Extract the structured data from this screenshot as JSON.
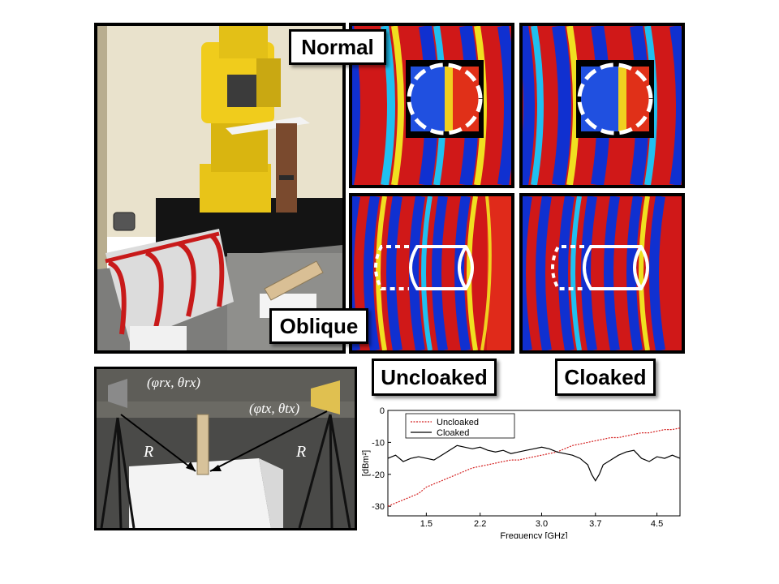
{
  "labels": {
    "normal": "Normal",
    "oblique": "Oblique",
    "uncloaked": "Uncloaked",
    "cloaked": "Cloaked"
  },
  "photo_labels": {
    "rx": "(φrx, θrx)",
    "tx": "(φtx, θtx)",
    "r_left": "R",
    "r_right": "R"
  },
  "colors": {
    "uncloaked_series": "#d42020",
    "cloaked_series": "#000000",
    "label_border": "#000000"
  },
  "chart_data": {
    "type": "line",
    "xlabel": "Frequency [GHz]",
    "ylabel": "[dBm²]",
    "xlim": [
      1.0,
      4.8
    ],
    "ylim": [
      -33,
      0
    ],
    "x_ticks": [
      1.5,
      2.2,
      3.0,
      3.7,
      4.5
    ],
    "x_tick_labels": [
      "1.5",
      "2.2",
      "3.0",
      "3.7",
      "4.5"
    ],
    "y_ticks": [
      0,
      -10,
      -20,
      -30
    ],
    "y_tick_labels": [
      "0",
      "-10",
      "-20",
      "-30"
    ],
    "legend": "top-left",
    "series": [
      {
        "name": "Uncloaked",
        "style": "dotted",
        "x": [
          1.0,
          1.1,
          1.2,
          1.3,
          1.4,
          1.5,
          1.6,
          1.7,
          1.8,
          1.9,
          2.0,
          2.1,
          2.2,
          2.3,
          2.4,
          2.5,
          2.6,
          2.7,
          2.8,
          2.9,
          3.0,
          3.1,
          3.2,
          3.3,
          3.4,
          3.5,
          3.6,
          3.7,
          3.8,
          3.9,
          4.0,
          4.1,
          4.2,
          4.3,
          4.4,
          4.5,
          4.6,
          4.7,
          4.8
        ],
        "y": [
          -30,
          -29,
          -28,
          -27,
          -26,
          -24,
          -23,
          -22,
          -21,
          -20,
          -19,
          -18,
          -17.5,
          -17,
          -16.5,
          -16,
          -15.5,
          -15.5,
          -15,
          -14.5,
          -14,
          -13.5,
          -13,
          -12,
          -11,
          -10.5,
          -10,
          -9.5,
          -9,
          -8.5,
          -8.5,
          -8,
          -7.5,
          -7,
          -7,
          -6.5,
          -6,
          -6,
          -5.5
        ]
      },
      {
        "name": "Cloaked",
        "style": "solid",
        "x": [
          1.0,
          1.1,
          1.2,
          1.3,
          1.4,
          1.5,
          1.6,
          1.7,
          1.8,
          1.9,
          2.0,
          2.1,
          2.2,
          2.3,
          2.4,
          2.5,
          2.6,
          2.7,
          2.8,
          2.9,
          3.0,
          3.1,
          3.2,
          3.3,
          3.4,
          3.5,
          3.6,
          3.65,
          3.7,
          3.75,
          3.8,
          3.9,
          4.0,
          4.1,
          4.2,
          4.3,
          4.4,
          4.5,
          4.6,
          4.7,
          4.8
        ],
        "y": [
          -15,
          -14,
          -16,
          -15,
          -14.5,
          -15,
          -15.5,
          -14,
          -12.5,
          -11,
          -11.5,
          -12,
          -11.5,
          -12.5,
          -13,
          -12.5,
          -13.5,
          -13,
          -12.5,
          -12,
          -11.5,
          -12,
          -13,
          -13.5,
          -14,
          -15,
          -17,
          -20,
          -22,
          -20,
          -17,
          -15.5,
          -14,
          -13,
          -12.5,
          -15,
          -16,
          -14.5,
          -15,
          -14,
          -15
        ]
      }
    ]
  }
}
